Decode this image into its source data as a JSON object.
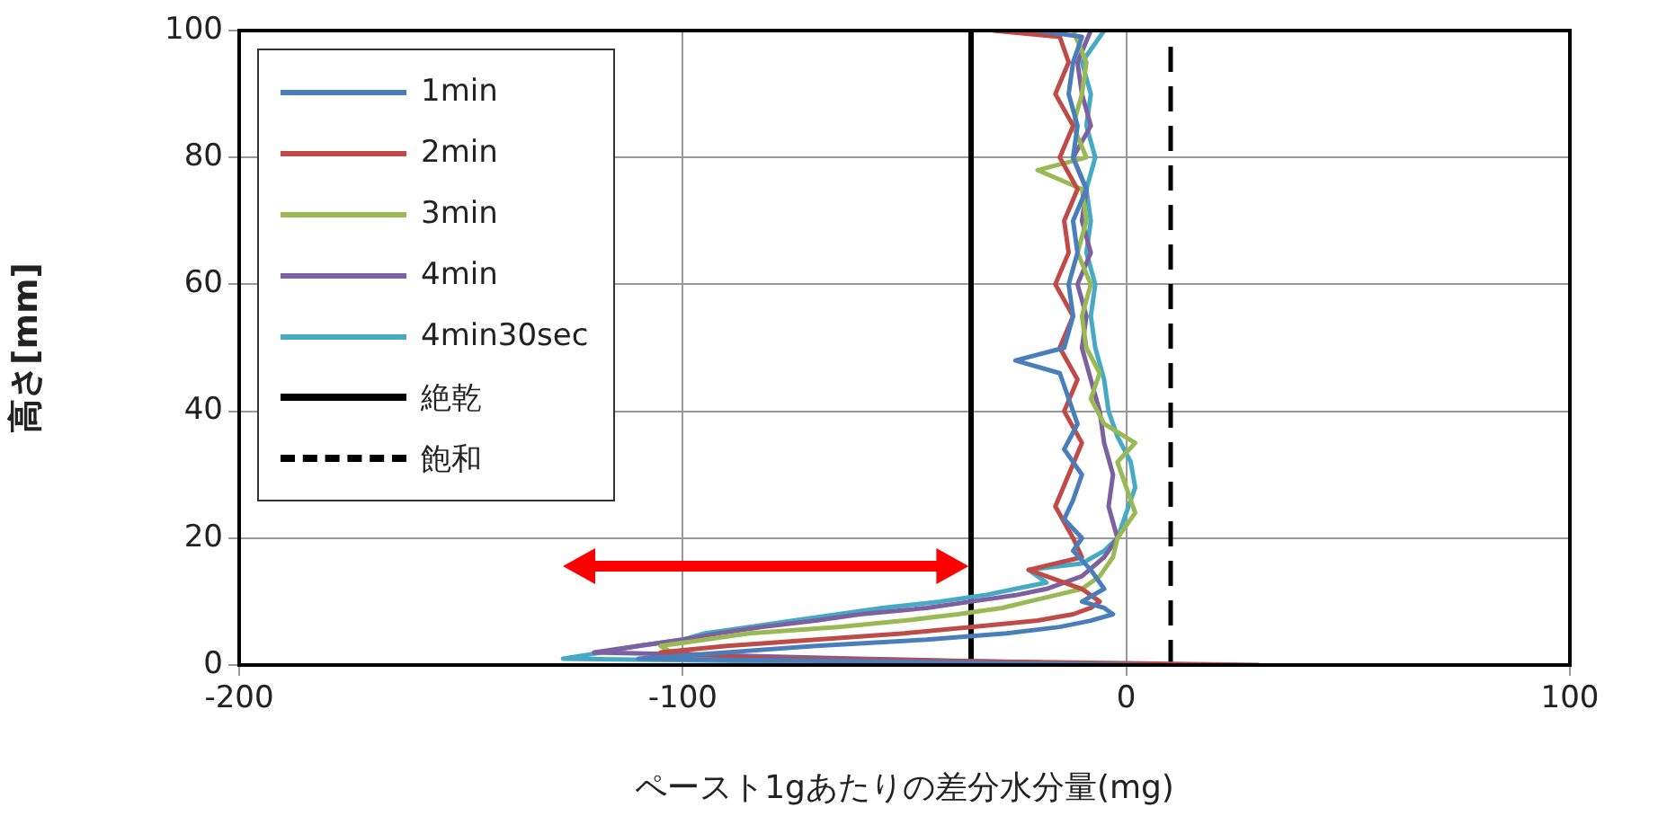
{
  "chart_data": {
    "type": "line",
    "xlabel": "ペースト1gあたりの差分水分量(mg)",
    "ylabel": "高さ[mm]",
    "xlim": [
      -200,
      100
    ],
    "xticks": [
      -200,
      -100,
      0,
      100
    ],
    "ylim": [
      0,
      100
    ],
    "yticks": [
      0,
      20,
      40,
      60,
      80,
      100
    ],
    "grid": true,
    "legend": "top left",
    "marker": "none",
    "series": [
      {
        "name": "1min",
        "color": "#4a7ebb",
        "x": [
          5,
          -110,
          -90,
          -70,
          -45,
          -27,
          -15,
          -8,
          -3,
          -5,
          -10,
          -5,
          -8,
          -12,
          -10,
          -14,
          -12,
          -10,
          -14,
          -11,
          -13,
          -15,
          -25,
          -14,
          -12,
          -13,
          -11,
          -12,
          -9,
          -12,
          -11,
          -13,
          -12,
          -10,
          -20
        ],
        "values": [
          0,
          1,
          2,
          3,
          4,
          5,
          6,
          7,
          8,
          9,
          10,
          12,
          15,
          18,
          20,
          23,
          26,
          30,
          34,
          38,
          42,
          46,
          48,
          50,
          55,
          60,
          65,
          70,
          75,
          80,
          85,
          90,
          95,
          99,
          100
        ]
      },
      {
        "name": "2min",
        "color": "#be4b48",
        "x": [
          30,
          -80,
          -105,
          -90,
          -70,
          -50,
          -35,
          -20,
          -12,
          -8,
          -6,
          -10,
          -22,
          -10,
          -12,
          -16,
          -13,
          -10,
          -14,
          -11,
          -15,
          -12,
          -16,
          -13,
          -14,
          -11,
          -15,
          -12,
          -16,
          -13,
          -15,
          -30
        ],
        "values": [
          0,
          1,
          2,
          3,
          4,
          5,
          6,
          7,
          8,
          9,
          10,
          12,
          15,
          17,
          20,
          25,
          30,
          35,
          40,
          45,
          50,
          55,
          60,
          65,
          70,
          75,
          80,
          85,
          90,
          95,
          99,
          100
        ]
      },
      {
        "name": "3min",
        "color": "#98b954",
        "x": [
          10,
          -100,
          -105,
          -85,
          -65,
          -50,
          -38,
          -28,
          -22,
          -16,
          -10,
          -6,
          -3,
          -2,
          2,
          0,
          -2,
          2,
          -5,
          -8,
          -6,
          -9,
          -10,
          -8,
          -11,
          -9,
          -10,
          -20,
          -9,
          -12,
          -10,
          -9,
          -12
        ],
        "values": [
          0,
          1,
          3,
          5,
          6,
          7,
          8,
          9,
          10,
          11,
          12,
          14,
          17,
          20,
          24,
          28,
          32,
          35,
          38,
          42,
          46,
          50,
          55,
          60,
          65,
          70,
          75,
          78,
          80,
          85,
          90,
          95,
          100
        ]
      },
      {
        "name": "4min",
        "color": "#7d60a0",
        "x": [
          5,
          -60,
          -120,
          -110,
          -100,
          -92,
          -82,
          -70,
          -60,
          -45,
          -35,
          -25,
          -18,
          -10,
          -5,
          -2,
          -4,
          -3,
          -5,
          -6,
          -8,
          -10,
          -9,
          -11,
          -8,
          -10,
          -9,
          -12,
          -8,
          -10,
          -11,
          -8
        ],
        "values": [
          0,
          1,
          2,
          3,
          4,
          5,
          6,
          7,
          8,
          9,
          10,
          11,
          12,
          14,
          17,
          20,
          25,
          30,
          35,
          40,
          45,
          50,
          55,
          60,
          65,
          70,
          75,
          80,
          85,
          90,
          95,
          100
        ]
      },
      {
        "name": "4min30sec",
        "color": "#46aac5",
        "x": [
          -20,
          -127,
          -118,
          -110,
          -100,
          -95,
          -85,
          -75,
          -65,
          -55,
          -42,
          -32,
          -25,
          -18,
          -22,
          -10,
          -5,
          -2,
          0,
          2,
          1,
          -2,
          -4,
          -5,
          -7,
          -8,
          -7,
          -9,
          -8,
          -9,
          -7,
          -9,
          -8,
          -10,
          -5
        ],
        "values": [
          0,
          1,
          2,
          3,
          4,
          5,
          6,
          7,
          8,
          9,
          10,
          11,
          12,
          13,
          15,
          16,
          18,
          20,
          24,
          28,
          32,
          36,
          40,
          45,
          50,
          55,
          60,
          65,
          70,
          75,
          80,
          85,
          90,
          95,
          100
        ]
      },
      {
        "name": "絶乾",
        "color": "#000000",
        "line_style": "solid",
        "x": [
          -35,
          -35
        ],
        "values": [
          0,
          100
        ]
      },
      {
        "name": "飽和",
        "color": "#000000",
        "line_style": "dashed",
        "x": [
          10,
          10
        ],
        "values": [
          0,
          100
        ]
      }
    ]
  }
}
